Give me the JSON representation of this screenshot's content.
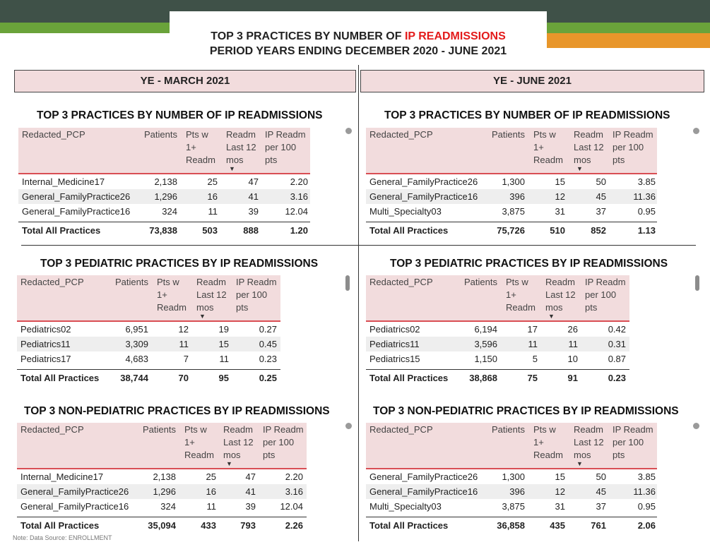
{
  "header": {
    "title_prefix": "TOP 3 PRACTICES BY NUMBER OF ",
    "title_highlight": "IP READMISSIONS",
    "subtitle": "PERIOD YEARS ENDING DECEMBER 2020 - JUNE 2021"
  },
  "columns": {
    "left": "YE - MARCH 2021",
    "right": "YE - JUNE 2021"
  },
  "table_headers": {
    "pcp": "Redacted_PCP",
    "patients": "Patients",
    "pts": [
      "Pts w",
      "1+",
      "Readm"
    ],
    "readm": [
      "Readm",
      "Last 12",
      "mos"
    ],
    "per100": [
      "IP Readm",
      "per 100",
      "pts"
    ]
  },
  "tables": {
    "all_mar": {
      "title": "TOP 3 PRACTICES BY NUMBER OF IP READMISSIONS",
      "rows": [
        {
          "pcp": "Internal_Medicine17",
          "patients": "2,138",
          "pts": "25",
          "readm": "47",
          "per100": "2.20"
        },
        {
          "pcp": "General_FamilyPractice26",
          "patients": "1,296",
          "pts": "16",
          "readm": "41",
          "per100": "3.16"
        },
        {
          "pcp": "General_FamilyPractice16",
          "patients": "324",
          "pts": "11",
          "readm": "39",
          "per100": "12.04"
        }
      ],
      "total": {
        "label": "Total All Practices",
        "patients": "73,838",
        "pts": "503",
        "readm": "888",
        "per100": "1.20"
      }
    },
    "all_jun": {
      "title": "TOP 3 PRACTICES BY NUMBER OF IP READMISSIONS",
      "rows": [
        {
          "pcp": "General_FamilyPractice26",
          "patients": "1,300",
          "pts": "15",
          "readm": "50",
          "per100": "3.85"
        },
        {
          "pcp": "General_FamilyPractice16",
          "patients": "396",
          "pts": "12",
          "readm": "45",
          "per100": "11.36"
        },
        {
          "pcp": "Multi_Specialty03",
          "patients": "3,875",
          "pts": "31",
          "readm": "37",
          "per100": "0.95"
        }
      ],
      "total": {
        "label": "Total All Practices",
        "patients": "75,726",
        "pts": "510",
        "readm": "852",
        "per100": "1.13"
      }
    },
    "ped_mar": {
      "title": "TOP 3 PEDIATRIC PRACTICES BY IP READMISSIONS",
      "rows": [
        {
          "pcp": "Pediatrics02",
          "patients": "6,951",
          "pts": "12",
          "readm": "19",
          "per100": "0.27"
        },
        {
          "pcp": "Pediatrics11",
          "patients": "3,309",
          "pts": "11",
          "readm": "15",
          "per100": "0.45"
        },
        {
          "pcp": "Pediatrics17",
          "patients": "4,683",
          "pts": "7",
          "readm": "11",
          "per100": "0.23"
        }
      ],
      "total": {
        "label": "Total All Practices",
        "patients": "38,744",
        "pts": "70",
        "readm": "95",
        "per100": "0.25"
      }
    },
    "ped_jun": {
      "title": "TOP 3 PEDIATRIC PRACTICES BY IP READMISSIONS",
      "rows": [
        {
          "pcp": "Pediatrics02",
          "patients": "6,194",
          "pts": "17",
          "readm": "26",
          "per100": "0.42"
        },
        {
          "pcp": "Pediatrics11",
          "patients": "3,596",
          "pts": "11",
          "readm": "11",
          "per100": "0.31"
        },
        {
          "pcp": "Pediatrics15",
          "patients": "1,150",
          "pts": "5",
          "readm": "10",
          "per100": "0.87"
        }
      ],
      "total": {
        "label": "Total All Practices",
        "patients": "38,868",
        "pts": "75",
        "readm": "91",
        "per100": "0.23"
      }
    },
    "nonped_mar": {
      "title": "TOP 3 NON-PEDIATRIC PRACTICES BY IP READMISSIONS",
      "rows": [
        {
          "pcp": "Internal_Medicine17",
          "patients": "2,138",
          "pts": "25",
          "readm": "47",
          "per100": "2.20"
        },
        {
          "pcp": "General_FamilyPractice26",
          "patients": "1,296",
          "pts": "16",
          "readm": "41",
          "per100": "3.16"
        },
        {
          "pcp": "General_FamilyPractice16",
          "patients": "324",
          "pts": "11",
          "readm": "39",
          "per100": "12.04"
        }
      ],
      "total": {
        "label": "Total All Practices",
        "patients": "35,094",
        "pts": "433",
        "readm": "793",
        "per100": "2.26"
      }
    },
    "nonped_jun": {
      "title": "TOP 3 NON-PEDIATRIC PRACTICES BY IP READMISSIONS",
      "rows": [
        {
          "pcp": "General_FamilyPractice26",
          "patients": "1,300",
          "pts": "15",
          "readm": "50",
          "per100": "3.85"
        },
        {
          "pcp": "General_FamilyPractice16",
          "patients": "396",
          "pts": "12",
          "readm": "45",
          "per100": "11.36"
        },
        {
          "pcp": "Multi_Specialty03",
          "patients": "3,875",
          "pts": "31",
          "readm": "37",
          "per100": "0.95"
        }
      ],
      "total": {
        "label": "Total All Practices",
        "patients": "36,858",
        "pts": "435",
        "readm": "761",
        "per100": "2.06"
      }
    }
  },
  "note": "Note: Data Source: ENROLLMENT",
  "colors": {
    "header_bg": "#3f5148",
    "accent_green": "#6aa33a",
    "accent_orange": "#e8962a",
    "title_red": "#e31b1b",
    "table_header_bg": "#f2dcdd",
    "table_header_border": "#d94e54"
  }
}
